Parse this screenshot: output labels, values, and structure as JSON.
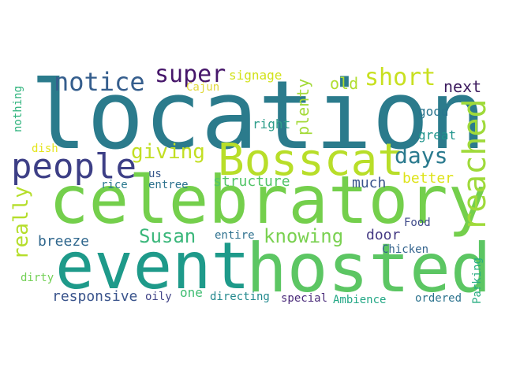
{
  "words": [
    {
      "id": "location",
      "text": "location",
      "color": "#2b7b8c"
    },
    {
      "id": "celebratory",
      "text": "celebratory",
      "color": "#74cf4c"
    },
    {
      "id": "event",
      "text": "event",
      "color": "#1e9a8a"
    },
    {
      "id": "hosted",
      "text": "hosted",
      "color": "#5cc663"
    },
    {
      "id": "bosscat",
      "text": "Bosscat",
      "color": "#b8de29"
    },
    {
      "id": "people",
      "text": "people",
      "color": "#3d3f86"
    },
    {
      "id": "reached",
      "text": "reached",
      "color": "#9fda3a"
    },
    {
      "id": "notice",
      "text": "notice",
      "color": "#355e8d"
    },
    {
      "id": "super",
      "text": "super",
      "color": "#46166a"
    },
    {
      "id": "short",
      "text": "short",
      "color": "#c8e020"
    },
    {
      "id": "giving",
      "text": "giving",
      "color": "#c2df23"
    },
    {
      "id": "days",
      "text": "days",
      "color": "#2a7a8e"
    },
    {
      "id": "knowing",
      "text": "knowing",
      "color": "#7ad151"
    },
    {
      "id": "susan",
      "text": "Susan",
      "color": "#3bb77b"
    },
    {
      "id": "really",
      "text": "really",
      "color": "#b5de2b"
    },
    {
      "id": "structure",
      "text": "structure",
      "color": "#54c568"
    },
    {
      "id": "next",
      "text": "next",
      "color": "#3c1b5e"
    },
    {
      "id": "old",
      "text": "old",
      "color": "#b0dd2f"
    },
    {
      "id": "signage",
      "text": "signage",
      "color": "#d2e21b"
    },
    {
      "id": "cajun",
      "text": "Cajun",
      "color": "#e1d83a"
    },
    {
      "id": "plenty",
      "text": "plenty",
      "color": "#a3da37"
    },
    {
      "id": "nothing",
      "text": "nothing",
      "color": "#2eb37c"
    },
    {
      "id": "right",
      "text": "right",
      "color": "#2e9d8a"
    },
    {
      "id": "good",
      "text": "good",
      "color": "#2b758e"
    },
    {
      "id": "great",
      "text": "great",
      "color": "#1f948c"
    },
    {
      "id": "dish",
      "text": "dish",
      "color": "#e4e51a"
    },
    {
      "id": "us",
      "text": "us",
      "color": "#38588c"
    },
    {
      "id": "rice",
      "text": "rice",
      "color": "#2a788e"
    },
    {
      "id": "entree",
      "text": "entree",
      "color": "#2c728e"
    },
    {
      "id": "much",
      "text": "much",
      "color": "#3a548c"
    },
    {
      "id": "better",
      "text": "better",
      "color": "#dde318"
    },
    {
      "id": "door",
      "text": "door",
      "color": "#443983"
    },
    {
      "id": "food",
      "text": "Food",
      "color": "#3e4989"
    },
    {
      "id": "breeze",
      "text": "breeze",
      "color": "#31688e"
    },
    {
      "id": "entire",
      "text": "entire",
      "color": "#2d708e"
    },
    {
      "id": "chicken",
      "text": "Chicken",
      "color": "#33638d"
    },
    {
      "id": "parking",
      "text": "Parking",
      "color": "#27ad81"
    },
    {
      "id": "dirty",
      "text": "dirty",
      "color": "#73d056"
    },
    {
      "id": "one",
      "text": "one",
      "color": "#40bd72"
    },
    {
      "id": "responsive",
      "text": "responsive",
      "color": "#3a548c"
    },
    {
      "id": "oily",
      "text": "oily",
      "color": "#414487"
    },
    {
      "id": "directing",
      "text": "directing",
      "color": "#23898e"
    },
    {
      "id": "special",
      "text": "special",
      "color": "#482878"
    },
    {
      "id": "ambience",
      "text": "Ambience",
      "color": "#22a785"
    },
    {
      "id": "ordered",
      "text": "ordered",
      "color": "#2c738e"
    }
  ]
}
